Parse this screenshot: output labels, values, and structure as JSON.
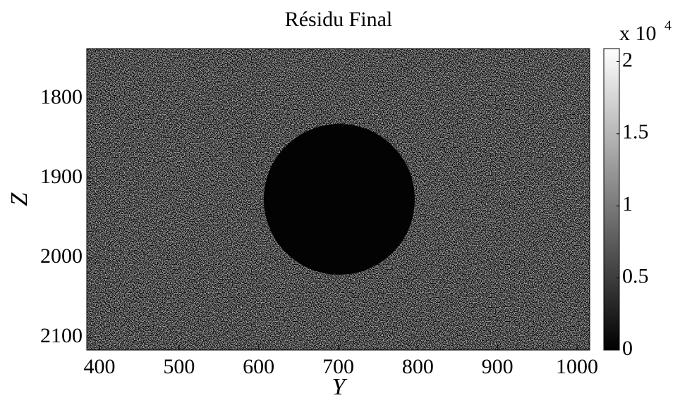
{
  "chart_data": {
    "type": "heatmap",
    "title": "Résidu Final",
    "xlabel": "Y",
    "ylabel": "Z",
    "xlim": [
      384,
      1016
    ],
    "ylim": [
      1737,
      2116
    ],
    "xticks": [
      400,
      500,
      600,
      700,
      800,
      900,
      1000
    ],
    "yticks": [
      1800,
      1900,
      2000,
      2100
    ],
    "colormap": "gray",
    "clim": [
      0,
      2.09
    ],
    "colorbar_ticks": [
      0,
      0.5,
      1,
      1.5,
      2
    ],
    "colorbar_multiplier": "x 10",
    "colorbar_exponent": "4"
  }
}
